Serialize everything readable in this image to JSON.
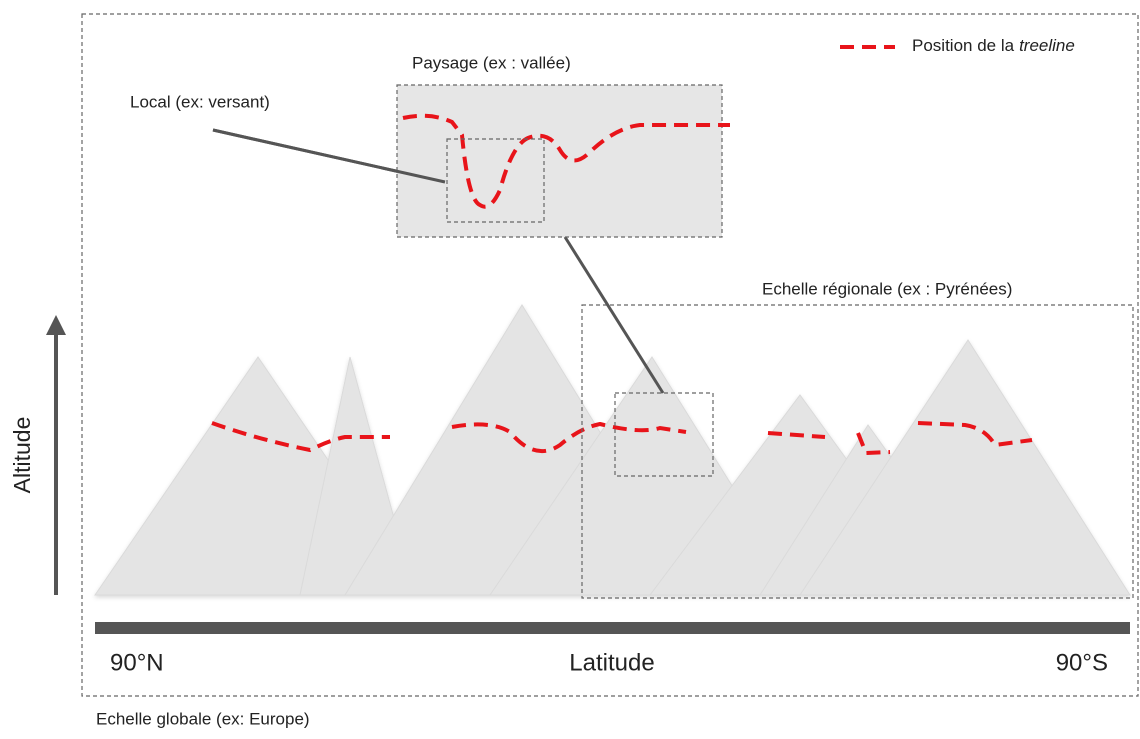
{
  "legend": {
    "prefix": "Position de la",
    "emphasis": "treeline"
  },
  "labels": {
    "landscape": "Paysage (ex : vallée)",
    "local": "Local (ex: versant)",
    "regional": "Echelle régionale (ex : Pyrénées)",
    "global": "Echelle globale (ex: Europe)"
  },
  "axes": {
    "y": "Altitude",
    "x": "Latitude",
    "x_start": "90°N",
    "x_end": "90°S"
  }
}
